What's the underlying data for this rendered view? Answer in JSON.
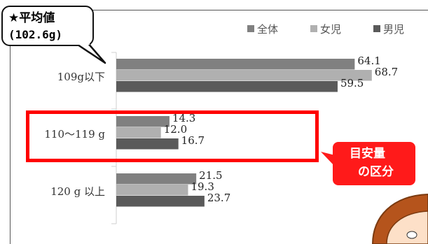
{
  "callout": {
    "title": "★平均値",
    "value": "(102.6g)"
  },
  "tag": {
    "line1": "目安量",
    "line2": "の区分"
  },
  "colors": {
    "all": "#808080",
    "girls": "#b0b0b0",
    "boys": "#5a5a5a",
    "highlight": "#ff0000"
  },
  "chart_data": {
    "type": "bar",
    "orientation": "horizontal",
    "categories": [
      "109g以下",
      "110～119 g",
      "120 g 以上"
    ],
    "series": [
      {
        "name": "全体",
        "values": [
          64.1,
          14.3,
          21.5
        ]
      },
      {
        "name": "女児",
        "values": [
          68.7,
          12.0,
          19.3
        ]
      },
      {
        "name": "男児",
        "values": [
          59.5,
          16.7,
          23.7
        ]
      }
    ],
    "value_labels": [
      [
        "64.1",
        "14.3",
        "21.5"
      ],
      [
        "68.7",
        "12.0",
        "19.3"
      ],
      [
        "59.5",
        "16.7",
        "23.7"
      ]
    ],
    "xlim": [
      0,
      100
    ],
    "legend_position": "top-right",
    "grid": false
  }
}
